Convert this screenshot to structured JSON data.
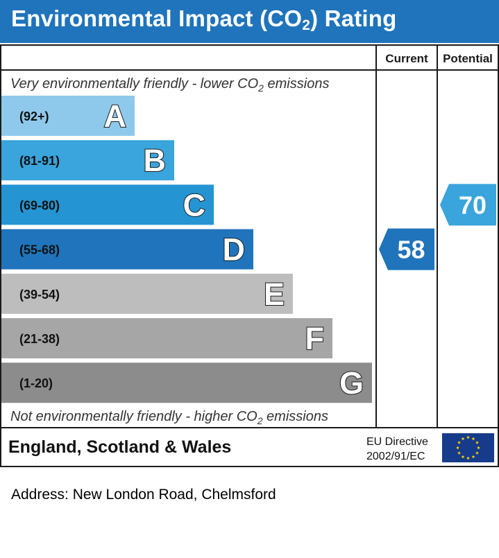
{
  "header": {
    "title_pre": "Environmental Impact (CO",
    "title_sub": "2",
    "title_post": ") Rating"
  },
  "colors": {
    "header": "#1f74bb",
    "A": "#8ec9ec",
    "B": "#3aa4dc",
    "C": "#2594d3",
    "D": "#1f74bb",
    "E": "#bdbdbd",
    "F": "#a6a6a6",
    "G": "#8c8c8c",
    "current_arrow": "#1f74bb",
    "potential_arrow": "#3aa4dc",
    "eu_flag": "#163b8a",
    "eu_star": "#ffd500"
  },
  "chart_data": {
    "type": "bar",
    "columns": [
      "Current",
      "Potential"
    ],
    "top_note": {
      "pre": "Very environmentally friendly - lower CO",
      "sub": "2",
      "post": " emissions"
    },
    "bottom_note": {
      "pre": "Not environmentally friendly - higher CO",
      "sub": "2",
      "post": " emissions"
    },
    "bands": [
      {
        "letter": "A",
        "range": "(92+)"
      },
      {
        "letter": "B",
        "range": "(81-91)"
      },
      {
        "letter": "C",
        "range": "(69-80)"
      },
      {
        "letter": "D",
        "range": "(55-68)"
      },
      {
        "letter": "E",
        "range": "(39-54)"
      },
      {
        "letter": "F",
        "range": "(21-38)"
      },
      {
        "letter": "G",
        "range": "(1-20)"
      }
    ],
    "current": {
      "value": 58,
      "band": "D"
    },
    "potential": {
      "value": 70,
      "band": "C"
    }
  },
  "footer": {
    "region": "England, Scotland & Wales",
    "directive_line1": "EU Directive",
    "directive_line2": "2002/91/EC",
    "flag_icon": "eu-flag-icon"
  },
  "address": "Address: New London Road, Chelmsford"
}
